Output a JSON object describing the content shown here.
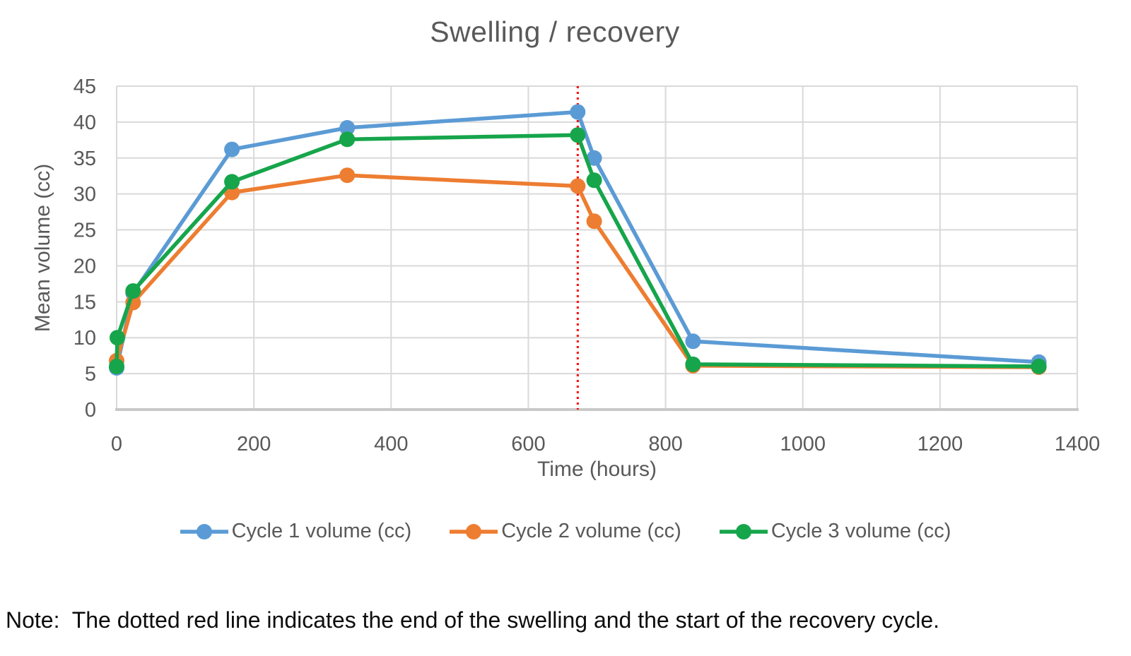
{
  "page": {
    "background": "#ffffff"
  },
  "note": "Note:  The dotted red line indicates the end of the swelling and the start of the recovery cycle.",
  "chart_data": {
    "type": "line",
    "title": "Swelling / recovery",
    "xlabel": "Time (hours)",
    "ylabel": "Mean volume (cc)",
    "xlim": [
      0,
      1400
    ],
    "ylim": [
      0,
      45
    ],
    "x_ticks": [
      0,
      200,
      400,
      600,
      800,
      1000,
      1200,
      1400
    ],
    "y_ticks": [
      0,
      5,
      10,
      15,
      20,
      25,
      30,
      35,
      40,
      45
    ],
    "grid": true,
    "grid_color": "#D9D9D9",
    "axis_line_color": "#C9C9C9",
    "text_color": "#595959",
    "legend_position": "bottom",
    "annotation_line": {
      "x": 672,
      "color": "#FF0000",
      "style": "dotted"
    },
    "series": [
      {
        "name": "Cycle 1 volume (cc)",
        "color": "#5B9BD5",
        "points": [
          [
            0,
            5.8
          ],
          [
            24,
            16.2
          ],
          [
            168,
            36.2
          ],
          [
            336,
            39.2
          ],
          [
            672,
            41.4
          ],
          [
            696,
            35.0
          ],
          [
            840,
            9.5
          ],
          [
            1344,
            6.6
          ]
        ]
      },
      {
        "name": "Cycle 2 volume (cc)",
        "color": "#ED7D31",
        "points": [
          [
            0,
            6.8
          ],
          [
            24,
            14.9
          ],
          [
            168,
            30.2
          ],
          [
            336,
            32.6
          ],
          [
            672,
            31.1
          ],
          [
            696,
            26.2
          ],
          [
            840,
            6.1
          ],
          [
            1344,
            5.9
          ]
        ]
      },
      {
        "name": "Cycle 3 volume (cc)",
        "color": "#16A54B",
        "points": [
          [
            0,
            6.0
          ],
          [
            1,
            10.0
          ],
          [
            24,
            16.5
          ],
          [
            168,
            31.7
          ],
          [
            336,
            37.6
          ],
          [
            672,
            38.2
          ],
          [
            696,
            31.9
          ],
          [
            840,
            6.3
          ],
          [
            1344,
            6.0
          ]
        ]
      }
    ]
  }
}
